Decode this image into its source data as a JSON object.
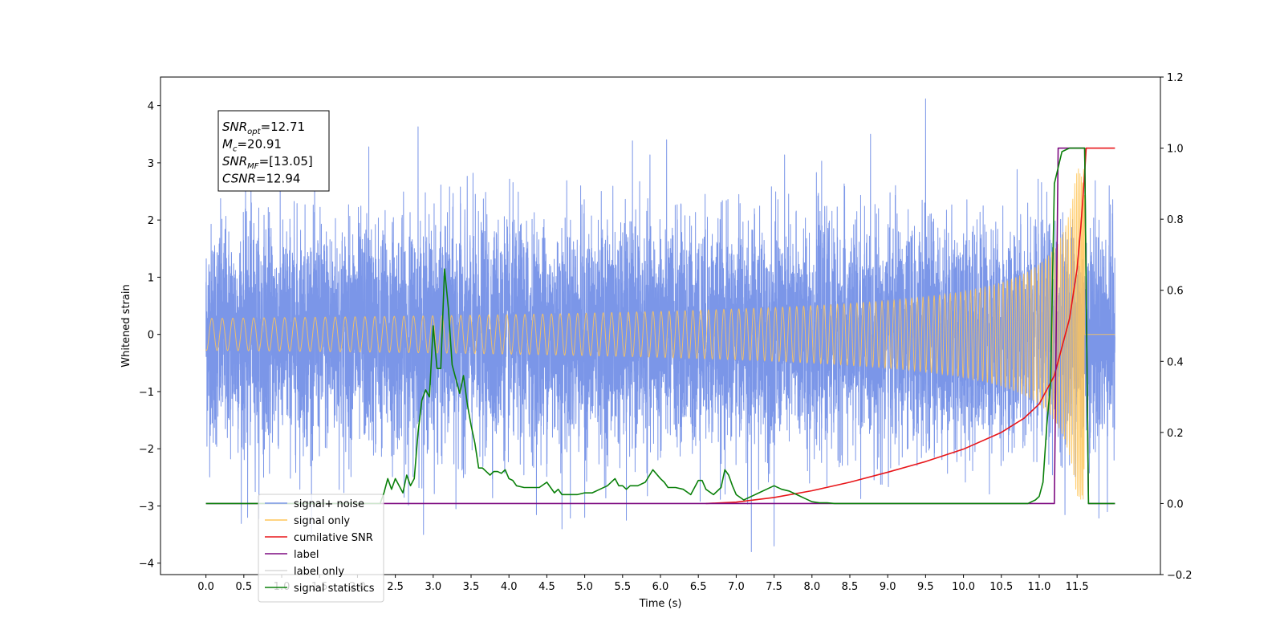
{
  "chart_data": {
    "type": "line",
    "title": "",
    "xlabel": "Time (s)",
    "ylabel_left": "Whitened strain",
    "ylabel_right": "",
    "xlim": [
      -0.6,
      12.6
    ],
    "ylim_left": [
      -4.2,
      4.5
    ],
    "ylim_right": [
      -0.2,
      1.2
    ],
    "x_ticks": [
      0.0,
      0.5,
      1.0,
      1.5,
      2.0,
      2.5,
      3.0,
      3.5,
      4.0,
      4.5,
      5.0,
      5.5,
      6.0,
      6.5,
      7.0,
      7.5,
      8.0,
      8.5,
      9.0,
      9.5,
      10.0,
      10.5,
      11.0,
      11.5
    ],
    "x_tick_labels": [
      "0.0",
      "0.5",
      "1.0",
      "1.5",
      "2.0",
      "2.5",
      "3.0",
      "3.5",
      "4.0",
      "4.5",
      "5.0",
      "5.5",
      "6.0",
      "6.5",
      "7.0",
      "7.5",
      "8.0",
      "8.5",
      "9.0",
      "9.5",
      "10.0",
      "10.5",
      "11.0",
      "11.5"
    ],
    "y_left_ticks": [
      4,
      3,
      2,
      1,
      0,
      -1,
      -2,
      -3,
      -4
    ],
    "y_left_tick_labels": [
      "4",
      "3",
      "2",
      "1",
      "0",
      "−1",
      "−2",
      "−3",
      "−4"
    ],
    "y_right_ticks": [
      1.2,
      1.0,
      0.8,
      0.6,
      0.4,
      0.2,
      0.0,
      -0.2
    ],
    "y_right_tick_labels": [
      "1.2",
      "1.0",
      "0.8",
      "0.6",
      "0.4",
      "0.2",
      "0.0",
      "−0.2"
    ],
    "grid": false,
    "legend_position": "lower-left",
    "annotation": {
      "lines": [
        {
          "sym": "SNR",
          "sub": "opt",
          "val": "=12.71"
        },
        {
          "sym": "M",
          "sub": "c",
          "val": "=20.91"
        },
        {
          "sym": "SNR",
          "sub": "MF",
          "val": "=[13.05]"
        },
        {
          "sym": "CSNR",
          "sub": "",
          "val": "=12.94"
        }
      ]
    },
    "series": [
      {
        "name": "signal+ noise",
        "axis": "left",
        "color": "#7b96e8",
        "kind": "noise",
        "x_range": [
          0.0,
          12.0
        ],
        "typical_amplitude": 1.0,
        "peaks": [
          [
            9.5,
            4.12
          ],
          [
            2.8,
            3.63
          ],
          [
            2.15,
            3.28
          ],
          [
            0.1,
            1.4
          ],
          [
            0.6,
            2.3
          ],
          [
            7.2,
            -3.8
          ],
          [
            7.5,
            -3.7
          ],
          [
            4.7,
            -3.4
          ],
          [
            5.0,
            -3.2
          ],
          [
            5.55,
            -3.25
          ],
          [
            3.3,
            -3.05
          ],
          [
            0.55,
            -3.2
          ],
          [
            11.9,
            -3.1
          ]
        ]
      },
      {
        "name": "signal only",
        "axis": "left",
        "color": "#ffc658",
        "kind": "chirp",
        "x_range": [
          0.0,
          12.0
        ],
        "merger_time": 11.6,
        "peak_amplitude": 2.9
      },
      {
        "name": "cumilative SNR",
        "axis": "right",
        "color": "#e8161a",
        "x": [
          6.6,
          7.0,
          7.5,
          8.0,
          8.5,
          9.0,
          9.5,
          10.0,
          10.5,
          10.8,
          11.0,
          11.2,
          11.4,
          11.5,
          11.55,
          11.6,
          11.62,
          11.65,
          12.0
        ],
        "values": [
          0.0,
          0.004,
          0.017,
          0.036,
          0.06,
          0.088,
          0.118,
          0.153,
          0.2,
          0.24,
          0.28,
          0.36,
          0.52,
          0.66,
          0.78,
          0.93,
          1.0,
          1.0,
          1.0
        ]
      },
      {
        "name": "label",
        "axis": "right",
        "color": "#7d0a80",
        "x": [
          0.0,
          11.2,
          11.25,
          11.55,
          11.6,
          11.65,
          12.0
        ],
        "values": [
          0.0,
          0.0,
          1.0,
          1.0,
          1.0,
          0.0,
          0.0
        ]
      },
      {
        "name": "label only",
        "axis": "right",
        "color": "#d8d8d8",
        "legend_only": true,
        "x": [],
        "values": []
      },
      {
        "name": "signal statistics",
        "axis": "right",
        "color": "#0a800a",
        "x": [
          0.0,
          2.3,
          2.35,
          2.4,
          2.45,
          2.5,
          2.55,
          2.6,
          2.65,
          2.7,
          2.75,
          2.8,
          2.85,
          2.9,
          2.95,
          3.0,
          3.05,
          3.1,
          3.15,
          3.2,
          3.25,
          3.3,
          3.35,
          3.4,
          3.45,
          3.5,
          3.55,
          3.6,
          3.65,
          3.7,
          3.75,
          3.8,
          3.85,
          3.9,
          3.95,
          4.0,
          4.05,
          4.1,
          4.2,
          4.3,
          4.4,
          4.5,
          4.6,
          4.65,
          4.7,
          4.8,
          4.9,
          5.0,
          5.1,
          5.2,
          5.3,
          5.4,
          5.45,
          5.5,
          5.55,
          5.6,
          5.7,
          5.8,
          5.9,
          6.0,
          6.05,
          6.1,
          6.2,
          6.3,
          6.4,
          6.5,
          6.55,
          6.6,
          6.7,
          6.8,
          6.85,
          6.9,
          6.95,
          7.0,
          7.1,
          7.2,
          7.3,
          7.4,
          7.5,
          7.6,
          7.7,
          7.8,
          7.9,
          8.0,
          8.1,
          8.2,
          8.3,
          8.4,
          8.5,
          8.6,
          9.0,
          10.0,
          10.7,
          10.8,
          10.85,
          10.9,
          10.95,
          11.0,
          11.05,
          11.1,
          11.15,
          11.2,
          11.3,
          11.4,
          11.6,
          11.65,
          11.7,
          11.75,
          11.8,
          12.0
        ],
        "values": [
          0.0,
          0.0,
          0.03,
          0.07,
          0.04,
          0.07,
          0.05,
          0.03,
          0.08,
          0.05,
          0.07,
          0.2,
          0.29,
          0.32,
          0.3,
          0.5,
          0.38,
          0.38,
          0.66,
          0.55,
          0.39,
          0.35,
          0.31,
          0.36,
          0.28,
          0.22,
          0.17,
          0.1,
          0.1,
          0.09,
          0.08,
          0.09,
          0.09,
          0.085,
          0.095,
          0.07,
          0.065,
          0.05,
          0.045,
          0.045,
          0.045,
          0.06,
          0.03,
          0.04,
          0.025,
          0.025,
          0.025,
          0.03,
          0.03,
          0.04,
          0.05,
          0.07,
          0.05,
          0.05,
          0.04,
          0.05,
          0.05,
          0.06,
          0.095,
          0.07,
          0.06,
          0.045,
          0.045,
          0.04,
          0.025,
          0.065,
          0.065,
          0.04,
          0.025,
          0.045,
          0.095,
          0.08,
          0.05,
          0.025,
          0.01,
          0.02,
          0.03,
          0.04,
          0.05,
          0.04,
          0.035,
          0.025,
          0.015,
          0.005,
          0.002,
          0.002,
          0.0,
          0.0,
          0.0,
          0.0,
          0.0,
          0.0,
          0.0,
          0.0,
          0.0,
          0.005,
          0.01,
          0.02,
          0.06,
          0.22,
          0.34,
          0.9,
          0.99,
          1.0,
          1.0,
          0.0,
          0.0,
          0.0,
          0.0,
          0.0
        ]
      }
    ]
  }
}
